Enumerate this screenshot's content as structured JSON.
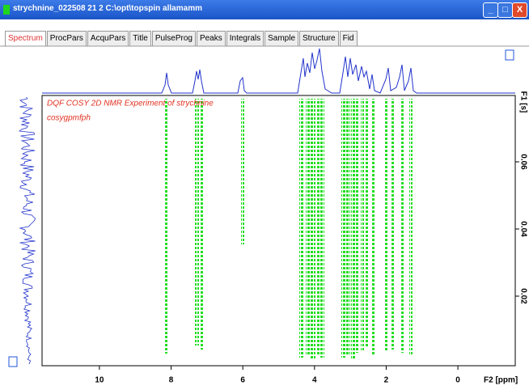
{
  "window": {
    "title": "strychnine_022508 21 2 C:\\opt\\topspin allamamm"
  },
  "tabs": [
    "Spectrum",
    "ProcPars",
    "AcquPars",
    "Title",
    "PulseProg",
    "Peaks",
    "Integrals",
    "Sample",
    "Structure",
    "Fid"
  ],
  "spectrum": {
    "annotation": [
      "DQF COSY 2D NMR Experiment of strychnine",
      "cosygpmfph"
    ],
    "x_label": "F2 [ppm]",
    "y_label": "F1 [s]",
    "xlim": [
      11.6,
      -1.6
    ],
    "xticks": [
      10,
      8,
      6,
      4,
      2,
      0
    ],
    "ylim": [
      0,
      0.08
    ],
    "yticks": [
      0.06,
      0.04,
      0.02
    ]
  }
}
